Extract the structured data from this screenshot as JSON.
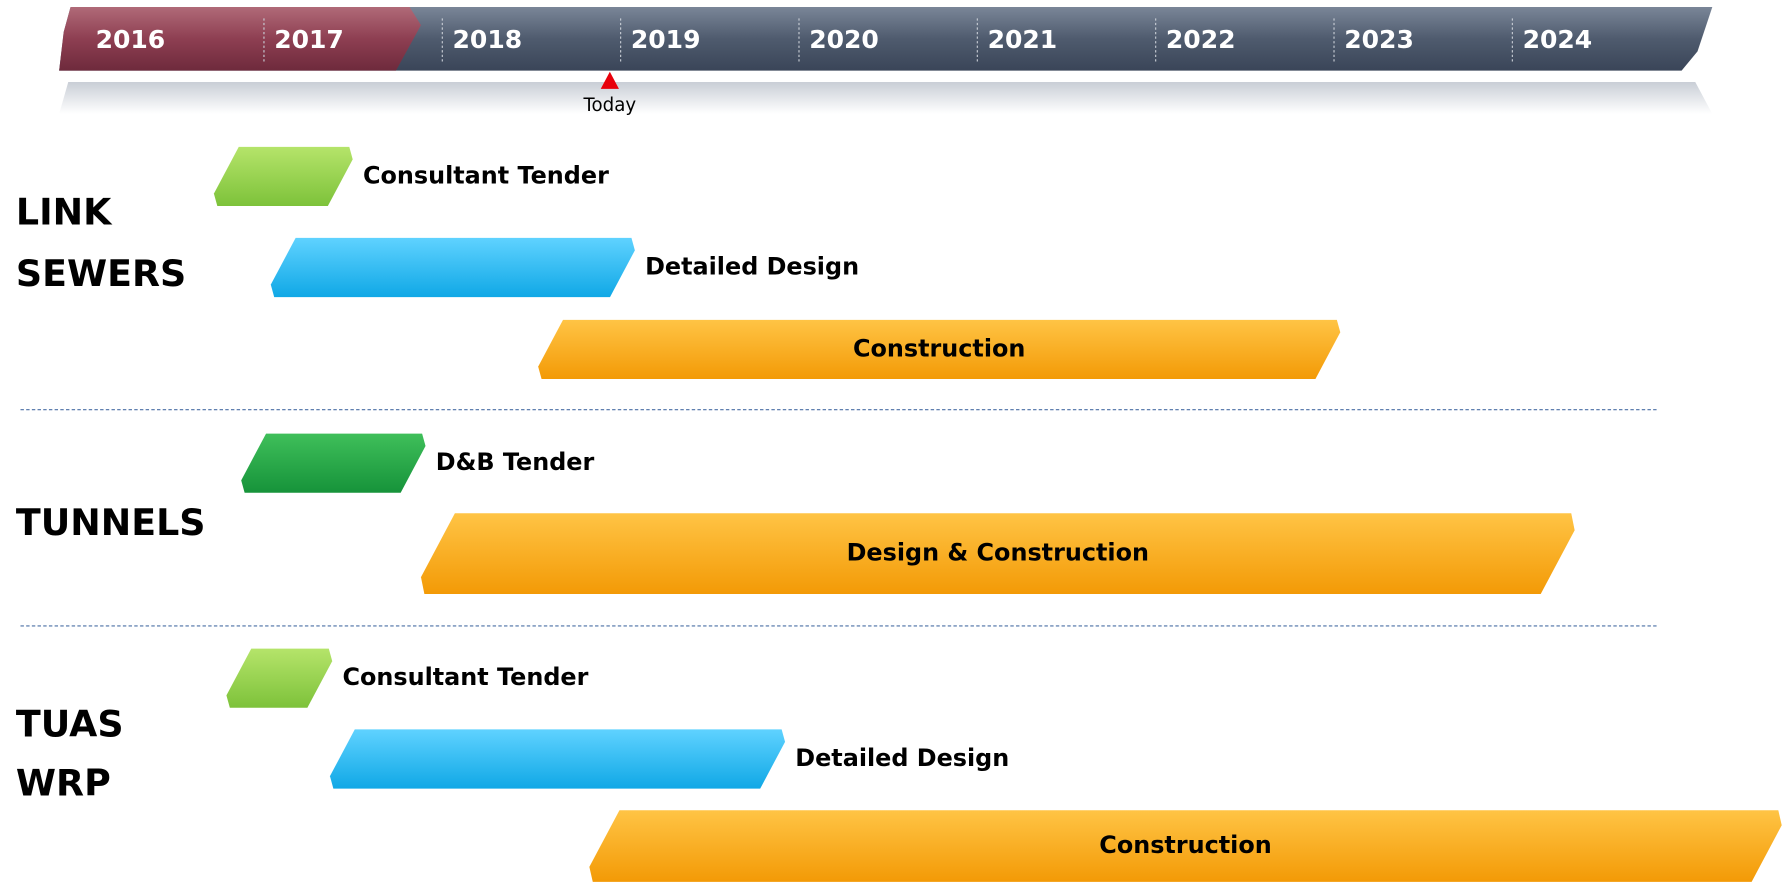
{
  "timeline": {
    "years": [
      "2016",
      "2017",
      "2018",
      "2019",
      "2020",
      "2021",
      "2022",
      "2023",
      "2024"
    ],
    "today_label": "Today"
  },
  "groups": [
    {
      "label": [
        "LINK",
        "SEWERS"
      ],
      "tasks": [
        "Consultant Tender",
        "Detailed Design",
        "Construction"
      ]
    },
    {
      "label": [
        "TUNNELS"
      ],
      "tasks": [
        "D&B Tender",
        "Design & Construction"
      ]
    },
    {
      "label": [
        "TUAS",
        "WRP"
      ],
      "tasks": [
        "Consultant Tender",
        "Detailed Design",
        "Construction"
      ]
    }
  ]
}
